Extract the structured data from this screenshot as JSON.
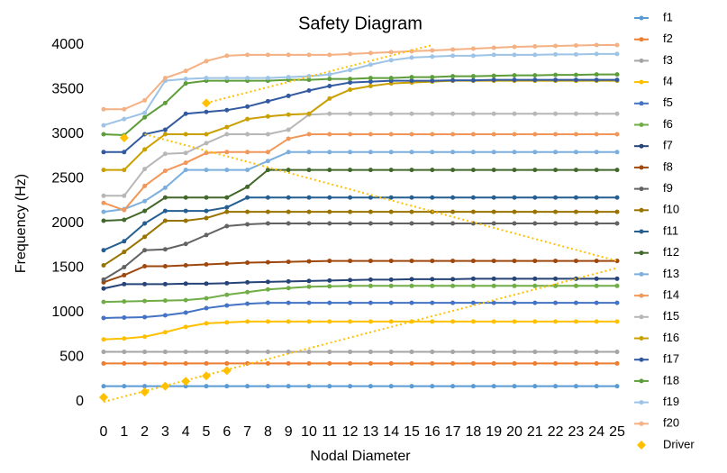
{
  "chart_data": {
    "type": "line",
    "title": "Safety Diagram",
    "x_label": "Nodal Diameter",
    "y_label": "Frequency (Hz)",
    "categories": [
      0,
      1,
      2,
      3,
      4,
      5,
      6,
      7,
      8,
      9,
      10,
      11,
      12,
      13,
      14,
      15,
      16,
      17,
      18,
      19,
      20,
      21,
      22,
      23,
      24,
      25
    ],
    "ylim": [
      0,
      4000
    ],
    "yticks": [
      0,
      500,
      1000,
      1500,
      2000,
      2500,
      3000,
      3500,
      4000
    ],
    "grid": false,
    "legend": "right",
    "series": [
      {
        "name": "f1",
        "color": "#5b9bd5",
        "values": [
          175,
          175,
          175,
          175,
          175,
          175,
          175,
          175,
          175,
          175,
          175,
          175,
          175,
          175,
          175,
          175,
          175,
          175,
          175,
          175,
          175,
          175,
          175,
          175,
          175,
          175
        ]
      },
      {
        "name": "f2",
        "color": "#ed7d31",
        "values": [
          430,
          430,
          430,
          430,
          430,
          430,
          430,
          430,
          430,
          430,
          430,
          430,
          430,
          430,
          430,
          430,
          430,
          430,
          430,
          430,
          430,
          430,
          430,
          430,
          430,
          430
        ]
      },
      {
        "name": "f3",
        "color": "#a5a5a5",
        "values": [
          560,
          560,
          560,
          560,
          560,
          560,
          560,
          560,
          560,
          560,
          560,
          560,
          560,
          560,
          560,
          560,
          560,
          560,
          560,
          560,
          560,
          560,
          560,
          560,
          560,
          560
        ]
      },
      {
        "name": "f4",
        "color": "#ffc000",
        "values": [
          700,
          710,
          730,
          780,
          840,
          880,
          890,
          900,
          900,
          900,
          900,
          900,
          900,
          900,
          900,
          900,
          900,
          900,
          900,
          900,
          900,
          900,
          900,
          900,
          900,
          900
        ]
      },
      {
        "name": "f5",
        "color": "#4472c4",
        "values": [
          940,
          945,
          950,
          970,
          1000,
          1050,
          1080,
          1100,
          1110,
          1110,
          1110,
          1110,
          1110,
          1110,
          1110,
          1110,
          1110,
          1110,
          1110,
          1110,
          1110,
          1110,
          1110,
          1110,
          1110,
          1110
        ]
      },
      {
        "name": "f6",
        "color": "#70ad47",
        "values": [
          1120,
          1125,
          1130,
          1135,
          1140,
          1160,
          1200,
          1230,
          1260,
          1275,
          1290,
          1295,
          1300,
          1300,
          1300,
          1300,
          1300,
          1300,
          1300,
          1300,
          1300,
          1300,
          1300,
          1300,
          1300,
          1300
        ]
      },
      {
        "name": "f7",
        "color": "#264478",
        "values": [
          1270,
          1320,
          1320,
          1320,
          1325,
          1325,
          1330,
          1340,
          1345,
          1350,
          1355,
          1360,
          1365,
          1370,
          1370,
          1375,
          1375,
          1375,
          1380,
          1380,
          1380,
          1380,
          1380,
          1380,
          1380,
          1380
        ]
      },
      {
        "name": "f8",
        "color": "#9e480e",
        "values": [
          1340,
          1420,
          1520,
          1520,
          1530,
          1540,
          1550,
          1560,
          1565,
          1570,
          1575,
          1580,
          1580,
          1580,
          1580,
          1580,
          1580,
          1580,
          1580,
          1580,
          1580,
          1580,
          1580,
          1580,
          1580,
          1580
        ]
      },
      {
        "name": "f9",
        "color": "#636363",
        "values": [
          1370,
          1510,
          1700,
          1710,
          1770,
          1870,
          1970,
          1990,
          2000,
          2000,
          2000,
          2000,
          2000,
          2000,
          2000,
          2000,
          2000,
          2000,
          2000,
          2000,
          2000,
          2000,
          2000,
          2000,
          2000,
          2000
        ]
      },
      {
        "name": "f10",
        "color": "#997300",
        "values": [
          1530,
          1680,
          1850,
          2030,
          2030,
          2060,
          2130,
          2130,
          2130,
          2130,
          2130,
          2130,
          2130,
          2130,
          2130,
          2130,
          2130,
          2130,
          2130,
          2130,
          2130,
          2130,
          2130,
          2130,
          2130,
          2130
        ]
      },
      {
        "name": "f11",
        "color": "#255e91",
        "values": [
          1700,
          1800,
          2000,
          2140,
          2140,
          2140,
          2180,
          2290,
          2290,
          2290,
          2290,
          2290,
          2290,
          2290,
          2290,
          2290,
          2290,
          2290,
          2290,
          2290,
          2290,
          2290,
          2290,
          2290,
          2290,
          2290
        ]
      },
      {
        "name": "f12",
        "color": "#43682b",
        "values": [
          2030,
          2040,
          2140,
          2290,
          2290,
          2290,
          2290,
          2410,
          2600,
          2600,
          2600,
          2600,
          2600,
          2600,
          2600,
          2600,
          2600,
          2600,
          2600,
          2600,
          2600,
          2600,
          2600,
          2600,
          2600,
          2600
        ]
      },
      {
        "name": "f13",
        "color": "#7cafdd",
        "values": [
          2130,
          2160,
          2250,
          2400,
          2600,
          2600,
          2600,
          2600,
          2700,
          2800,
          2800,
          2800,
          2800,
          2800,
          2800,
          2800,
          2800,
          2800,
          2800,
          2800,
          2800,
          2800,
          2800,
          2800,
          2800,
          2800
        ]
      },
      {
        "name": "f14",
        "color": "#f1975a",
        "values": [
          2230,
          2150,
          2420,
          2590,
          2680,
          2790,
          2800,
          2800,
          2800,
          2950,
          3000,
          3000,
          3000,
          3000,
          3000,
          3000,
          3000,
          3000,
          3000,
          3000,
          3000,
          3000,
          3000,
          3000,
          3000,
          3000
        ]
      },
      {
        "name": "f15",
        "color": "#b7b7b7",
        "values": [
          2310,
          2310,
          2610,
          2780,
          2790,
          2900,
          3000,
          3000,
          3000,
          3050,
          3220,
          3230,
          3230,
          3230,
          3230,
          3230,
          3230,
          3230,
          3230,
          3230,
          3230,
          3230,
          3230,
          3230,
          3230,
          3230
        ]
      },
      {
        "name": "f16",
        "color": "#c9a000",
        "values": [
          2600,
          2600,
          2830,
          3000,
          3000,
          3000,
          3080,
          3170,
          3200,
          3220,
          3230,
          3400,
          3500,
          3540,
          3570,
          3580,
          3590,
          3600,
          3600,
          3600,
          3600,
          3600,
          3600,
          3600,
          3600,
          3600
        ]
      },
      {
        "name": "f17",
        "color": "#335aa1",
        "values": [
          2800,
          2800,
          3000,
          3050,
          3230,
          3250,
          3270,
          3310,
          3370,
          3430,
          3490,
          3540,
          3580,
          3590,
          3600,
          3600,
          3600,
          3605,
          3605,
          3610,
          3610,
          3610,
          3610,
          3610,
          3610,
          3610
        ]
      },
      {
        "name": "f18",
        "color": "#5e9e3a",
        "values": [
          3000,
          2990,
          3190,
          3350,
          3570,
          3600,
          3600,
          3600,
          3600,
          3610,
          3610,
          3620,
          3620,
          3630,
          3630,
          3640,
          3640,
          3650,
          3650,
          3655,
          3660,
          3660,
          3665,
          3665,
          3670,
          3670
        ]
      },
      {
        "name": "f19",
        "color": "#9dc3e6",
        "values": [
          3100,
          3170,
          3240,
          3600,
          3620,
          3630,
          3630,
          3630,
          3630,
          3640,
          3650,
          3670,
          3720,
          3780,
          3830,
          3860,
          3870,
          3880,
          3880,
          3890,
          3890,
          3890,
          3895,
          3895,
          3900,
          3900
        ]
      },
      {
        "name": "f20",
        "color": "#f4b183",
        "values": [
          3280,
          3280,
          3380,
          3630,
          3710,
          3820,
          3880,
          3890,
          3890,
          3890,
          3890,
          3890,
          3900,
          3910,
          3920,
          3930,
          3940,
          3950,
          3960,
          3970,
          3980,
          3985,
          3990,
          3995,
          4000,
          4000
        ]
      }
    ],
    "driver": {
      "name": "Driver",
      "color": "#ffc000",
      "x": [
        0,
        1,
        2,
        3,
        4,
        5,
        5,
        6
      ],
      "values": [
        50,
        2960,
        110,
        175,
        230,
        290,
        3350,
        350
      ]
    },
    "driver_lines": [
      {
        "x": [
          0,
          25
        ],
        "values": [
          0,
          1500
        ]
      },
      {
        "x": [
          2,
          25
        ],
        "values": [
          3000,
          1580
        ]
      },
      {
        "x": [
          5,
          16
        ],
        "values": [
          3350,
          4000
        ]
      }
    ]
  }
}
